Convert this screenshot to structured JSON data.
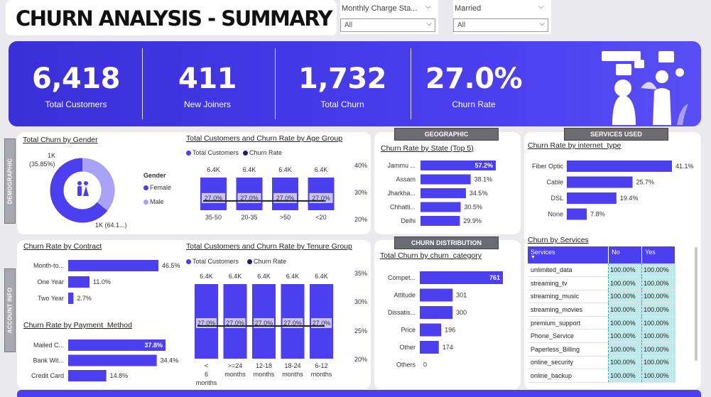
{
  "header": {
    "title": "CHURN ANALYSIS - SUMMARY"
  },
  "filters": [
    {
      "label": "Monthly Charge Sta...",
      "value": "All"
    },
    {
      "label": "Married",
      "value": "All"
    }
  ],
  "kpis": [
    {
      "value": "6,418",
      "label": "Total Customers"
    },
    {
      "value": "411",
      "label": "New Joiners"
    },
    {
      "value": "1,732",
      "label": "Total Churn"
    },
    {
      "value": "27.0%",
      "label": "Churn Rate"
    }
  ],
  "sections": {
    "demographic": "DEMOGRAPHIC",
    "account": "ACCOUNT INFO",
    "geographic": "GEOGRAPHIC",
    "services": "SERVICES USED",
    "distribution": "CHURN DISTRIBUTION"
  },
  "gender": {
    "title": "Total Churn by Gender",
    "legend_title": "Gender",
    "female_label": "Female",
    "male_label": "Male",
    "label_top_1": "1K",
    "label_top_2": "(35.85%)",
    "label_bottom": "1K (64.1...)",
    "colors": {
      "female": "#4b3ff0",
      "male": "#a7a2f5"
    }
  },
  "age": {
    "title": "Total Customers and Churn Rate by Age Group",
    "legend_customers": "Total Customers",
    "legend_churn": "Churn Rate",
    "y_ticks": [
      "40%",
      "30%",
      "20%"
    ]
  },
  "tenure": {
    "title": "Total Customers and Churn Rate by Tenure Group",
    "legend_customers": "Total Customers",
    "legend_churn": "Churn Rate",
    "y_ticks": [
      "35%",
      "30%",
      "25%",
      "20%"
    ]
  },
  "state": {
    "title": "Churn Rate by State (Top 5)"
  },
  "internet": {
    "title": "Churn Rate by internet_type"
  },
  "contract": {
    "title": "Churn Rate by Contract"
  },
  "payment": {
    "title": "Churn Rate by Payment_Method"
  },
  "category": {
    "title": "Total Churn by churn_category"
  },
  "services": {
    "title": "Churn by Services",
    "columns": [
      "Services",
      "No",
      "Yes"
    ],
    "rows": [
      [
        "unlimited_data",
        "100.00%",
        "100.00%"
      ],
      [
        "streaming_tv",
        "100.00%",
        "100.00%"
      ],
      [
        "streaming_music",
        "100.00%",
        "100.00%"
      ],
      [
        "streaming_movies",
        "100.00%",
        "100.00%"
      ],
      [
        "premium_support",
        "100.00%",
        "100.00%"
      ],
      [
        "Phone_Service",
        "100.00%",
        "100.00%"
      ],
      [
        "Paperless_Billing",
        "100.00%",
        "100.00%"
      ],
      [
        "online_security",
        "100.00%",
        "100.00%"
      ],
      [
        "online_backup",
        "100.00%",
        "100.00%"
      ]
    ]
  },
  "chart_data": [
    {
      "type": "pie",
      "title": "Total Churn by Gender",
      "categories": [
        "Female",
        "Male"
      ],
      "values": [
        64.15,
        35.85
      ],
      "labels": [
        "1K (64.1...)",
        "1K (35.85%)"
      ]
    },
    {
      "type": "bar",
      "title": "Total Customers and Churn Rate by Age Group",
      "categories": [
        "35-50",
        "20-35",
        ">50",
        "<20"
      ],
      "series": [
        {
          "name": "Total Customers",
          "values": [
            6400,
            6400,
            6400,
            6400
          ],
          "labels": [
            "6.4K",
            "6.4K",
            "6.4K",
            "6.4K"
          ]
        },
        {
          "name": "Churn Rate",
          "values": [
            27.0,
            27.0,
            27.0,
            27.0
          ],
          "labels": [
            "27.0%",
            "27.0%",
            "27.0%",
            "27.0%"
          ]
        }
      ],
      "y2lim": [
        20,
        40
      ]
    },
    {
      "type": "bar",
      "title": "Total Customers and Churn Rate by Tenure Group",
      "categories": [
        "< 6 months",
        ">=24 months",
        "12-18 months",
        "18-24 months",
        "6-12 months"
      ],
      "series": [
        {
          "name": "Total Customers",
          "values": [
            6400,
            6400,
            6400,
            6400,
            6400
          ],
          "labels": [
            "6.4K",
            "6.4K",
            "6.4K",
            "6.4K",
            "6.4K"
          ]
        },
        {
          "name": "Churn Rate",
          "values": [
            27.0,
            27.0,
            27.0,
            27.0,
            27.0
          ],
          "labels": [
            "27.0%",
            "27.0%",
            "27.0%",
            "27.0%",
            "27.0%"
          ]
        }
      ],
      "y2lim": [
        20,
        35
      ]
    },
    {
      "type": "bar",
      "title": "Churn Rate by State (Top 5)",
      "categories": [
        "Jammu ...",
        "Assam",
        "Jharkha...",
        "Chhatti...",
        "Delhi"
      ],
      "values": [
        57.2,
        38.1,
        34.5,
        30.5,
        29.9
      ],
      "labels": [
        "57.2%",
        "38.1%",
        "34.5%",
        "30.5%",
        "29.9%"
      ]
    },
    {
      "type": "bar",
      "title": "Churn Rate by internet_type",
      "categories": [
        "Fiber Optic",
        "Cable",
        "DSL",
        "None"
      ],
      "values": [
        41.1,
        25.7,
        19.4,
        7.8
      ],
      "labels": [
        "41.1%",
        "25.7%",
        "19.4%",
        "7.8%"
      ]
    },
    {
      "type": "bar",
      "title": "Churn Rate by Contract",
      "categories": [
        "Month-to...",
        "One Year",
        "Two Year"
      ],
      "values": [
        46.5,
        11.0,
        2.7
      ],
      "labels": [
        "46.5%",
        "11.0%",
        "2.7%"
      ]
    },
    {
      "type": "bar",
      "title": "Churn Rate by Payment_Method",
      "categories": [
        "Mailed C...",
        "Bank Wit...",
        "Credit Card"
      ],
      "values": [
        37.8,
        34.4,
        14.8
      ],
      "labels": [
        "37.8%",
        "34.4%",
        "14.8%"
      ]
    },
    {
      "type": "bar",
      "title": "Total Churn by churn_category",
      "categories": [
        "Compet...",
        "Attitude",
        "Dissatis...",
        "Price",
        "Other",
        "Others"
      ],
      "values": [
        761,
        301,
        300,
        196,
        174,
        0
      ],
      "labels": [
        "761",
        "301",
        "300",
        "196",
        "174",
        "0"
      ]
    }
  ]
}
